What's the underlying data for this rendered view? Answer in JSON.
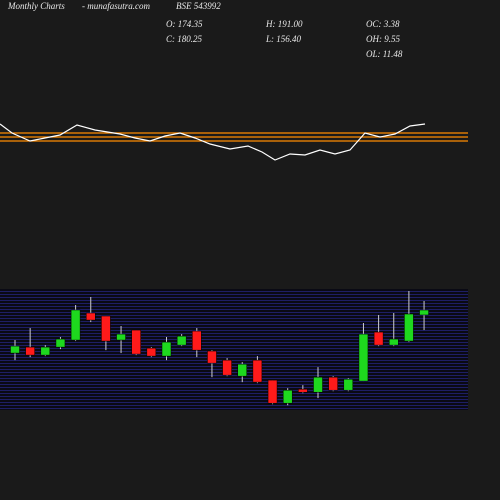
{
  "chart_data": {
    "type": "candlestick",
    "title": "Monthly Charts",
    "source": "- munafasutra.com",
    "symbol": "BSE 543992",
    "stats": [
      "O: 174.35",
      "H: 191.00",
      "OC: 3.38",
      "C: 180.25",
      "L: 156.40",
      "OH: 9.55",
      "OL: 11.48"
    ],
    "up_color": "#1ed81e",
    "down_color": "#ff1a1a",
    "ylim": [
      63.6,
      204.1
    ],
    "open": [
      129.0,
      136.1,
      126.6,
      136.1,
      144.5,
      176.7,
      173.1,
      144.5,
      156.4,
      134.9,
      125.4,
      138.5,
      155.2,
      131.4,
      120.6,
      101.5,
      120.6,
      96.8,
      69.3,
      86.0,
      82.4,
      100.3,
      84.8,
      95.6,
      154.0,
      138.5,
      143.3,
      174.35
    ],
    "high": [
      144.5,
      158.8,
      138.5,
      148.1,
      186.2,
      195.8,
      173.1,
      161.2,
      156.4,
      136.1,
      148.1,
      151.6,
      158.8,
      132.5,
      123.0,
      118.2,
      125.4,
      96.8,
      87.2,
      90.8,
      112.3,
      101.5,
      99.1,
      164.8,
      174.3,
      176.7,
      202.9,
      191.0
    ],
    "low": [
      120.6,
      124.2,
      125.4,
      133.7,
      143.3,
      165.9,
      132.5,
      129.0,
      126.6,
      124.2,
      120.6,
      137.3,
      124.2,
      100.3,
      101.5,
      94.4,
      93.2,
      68.1,
      66.9,
      81.2,
      75.3,
      83.6,
      83.6,
      95.6,
      137.3,
      137.3,
      142.1,
      156.4
    ],
    "close": [
      137.3,
      126.6,
      136.1,
      145.7,
      180.3,
      168.3,
      143.3,
      151.6,
      127.8,
      125.4,
      142.1,
      149.2,
      132.5,
      117.0,
      102.7,
      115.8,
      94.4,
      69.3,
      84.8,
      82.4,
      100.3,
      84.8,
      97.9,
      151.6,
      138.5,
      145.7,
      175.5,
      180.25
    ],
    "indicator": {
      "color": "#ffffff",
      "level_color": "#ff8c00",
      "ylim": [
        0,
        100
      ],
      "levels": [
        67,
        63,
        59
      ],
      "x": [
        0,
        12,
        30,
        60,
        77,
        95,
        120,
        135,
        150,
        165,
        180,
        195,
        210,
        230,
        248,
        262,
        275,
        290,
        305,
        320,
        335,
        350,
        365,
        380,
        395,
        410,
        425
      ],
      "values": [
        76,
        67,
        59,
        65,
        75,
        70,
        66,
        62,
        59,
        64,
        67,
        62,
        56,
        51,
        54,
        48,
        40,
        46,
        45,
        50,
        46,
        50,
        67,
        63,
        66,
        74,
        76
      ]
    }
  }
}
